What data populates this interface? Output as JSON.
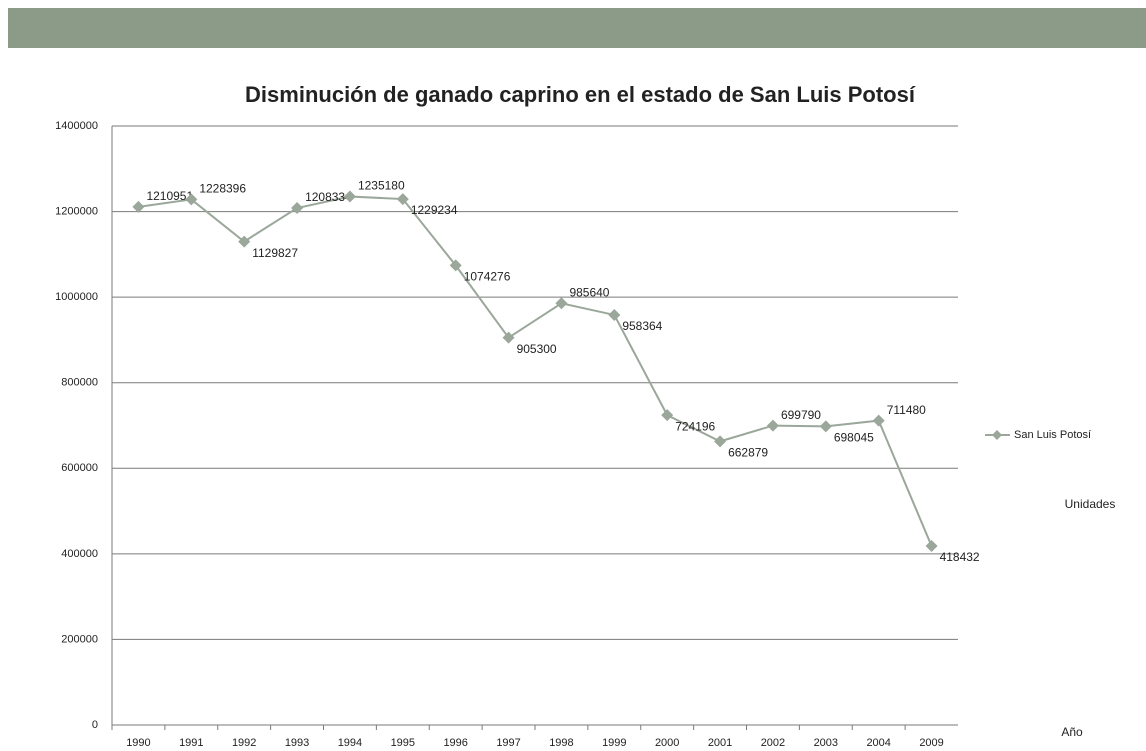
{
  "chart_data": {
    "type": "line",
    "title": "Disminución de ganado caprino en el estado de San Luis Potosí",
    "x_label": "Año",
    "y_label": "Unidades",
    "categories": [
      "1990",
      "1991",
      "1992",
      "1993",
      "1994",
      "1995",
      "1996",
      "1997",
      "1998",
      "1999",
      "2000",
      "2001",
      "2002",
      "2003",
      "2004",
      "2009"
    ],
    "series": [
      {
        "name": "San Luis Potosí",
        "color": "#9aa79a",
        "values": [
          1210951,
          1228396,
          1129827,
          1208334,
          1235180,
          1229234,
          1074276,
          905300,
          985640,
          958364,
          724196,
          662879,
          699790,
          698045,
          711480,
          418432
        ]
      }
    ],
    "ylim": [
      0,
      1400000
    ],
    "yticks": [
      0,
      200000,
      400000,
      600000,
      800000,
      1000000,
      1200000,
      1400000
    ],
    "grid": true,
    "legend": "right"
  }
}
